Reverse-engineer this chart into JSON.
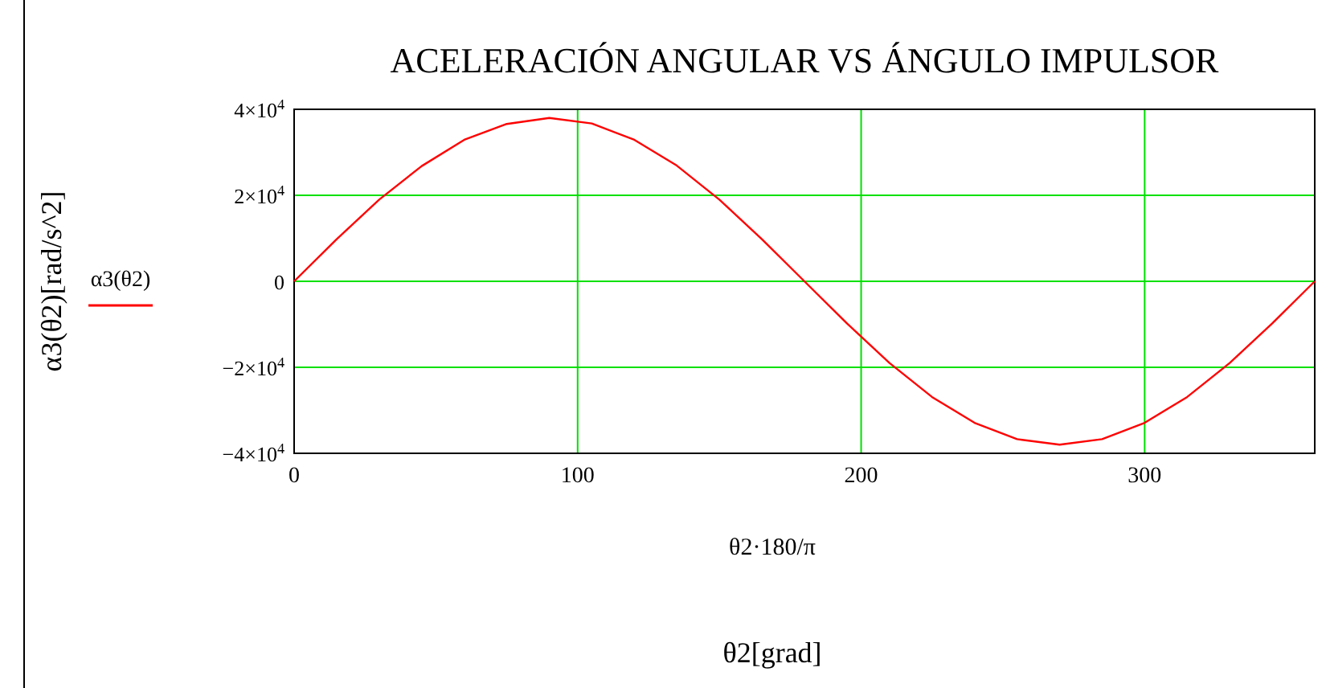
{
  "chart_data": {
    "type": "line",
    "title": "ACELERACIÓN ANGULAR VS ÁNGULO IMPULSOR",
    "xlabel": "θ2·180/π",
    "annotations": [
      "α3(θ2)[rad/s^2]",
      "θ2[grad]"
    ],
    "x": [
      0,
      15,
      30,
      45,
      60,
      75,
      90,
      105,
      120,
      135,
      150,
      165,
      180,
      195,
      210,
      225,
      240,
      255,
      270,
      285,
      300,
      315,
      330,
      345,
      360
    ],
    "series": [
      {
        "name": "α3(θ2)",
        "color": "#ff0000",
        "values": [
          0,
          9800,
          19000,
          26800,
          32900,
          36600,
          38000,
          36700,
          32900,
          26900,
          19000,
          9800,
          0,
          -9800,
          -19000,
          -26900,
          -32900,
          -36700,
          -38000,
          -36700,
          -32900,
          -26900,
          -19000,
          -9800,
          0
        ]
      }
    ],
    "xlim": [
      0,
      360
    ],
    "xticks": [
      0,
      100,
      200,
      300
    ],
    "ylim": [
      -40000,
      40000
    ],
    "yticks": [
      {
        "value": 40000,
        "label": "4×10$^{4}$"
      },
      {
        "value": 20000,
        "label": "2×10$^{4}$"
      },
      {
        "value": 0,
        "label": "0"
      },
      {
        "value": -20000,
        "label": "−2×10$^{4}$"
      },
      {
        "value": -40000,
        "label": "−4×10$^{4}$"
      }
    ],
    "grid": true,
    "legend": "left",
    "line_style": "solid",
    "marker": "none"
  }
}
